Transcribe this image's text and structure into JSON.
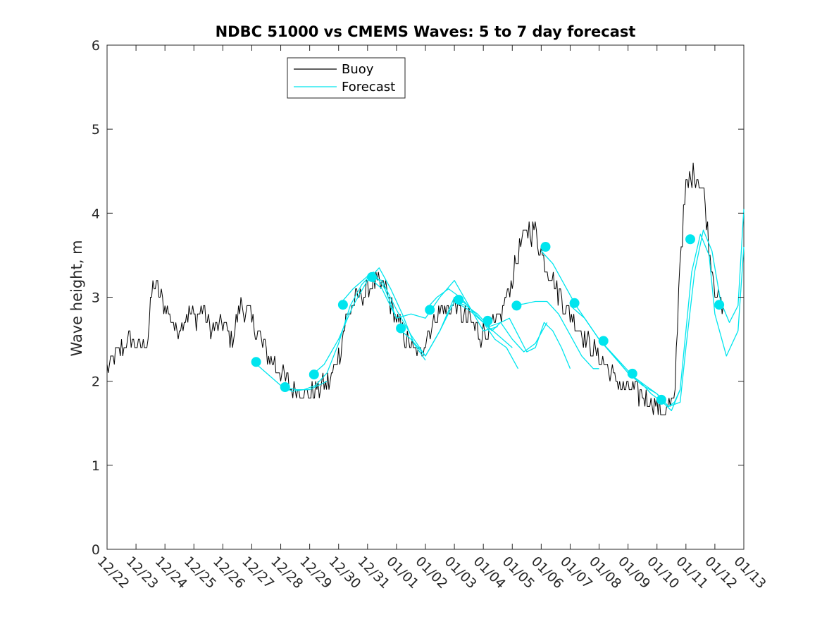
{
  "chart_data": {
    "type": "line",
    "title": "NDBC 51000 vs CMEMS Waves: 5 to 7 day forecast",
    "xlabel": "",
    "ylabel": "Wave height, m",
    "ylim": [
      0,
      6
    ],
    "xlim": [
      0,
      22
    ],
    "yticks": [
      0,
      1,
      2,
      3,
      4,
      5,
      6
    ],
    "xticks": [
      {
        "x": 0,
        "label": "12/22"
      },
      {
        "x": 1,
        "label": "12/23"
      },
      {
        "x": 2,
        "label": "12/24"
      },
      {
        "x": 3,
        "label": "12/25"
      },
      {
        "x": 4,
        "label": "12/26"
      },
      {
        "x": 5,
        "label": "12/27"
      },
      {
        "x": 6,
        "label": "12/28"
      },
      {
        "x": 7,
        "label": "12/29"
      },
      {
        "x": 8,
        "label": "12/30"
      },
      {
        "x": 9,
        "label": "12/31"
      },
      {
        "x": 10,
        "label": "01/01"
      },
      {
        "x": 11,
        "label": "01/02"
      },
      {
        "x": 12,
        "label": "01/03"
      },
      {
        "x": 13,
        "label": "01/04"
      },
      {
        "x": 14,
        "label": "01/05"
      },
      {
        "x": 15,
        "label": "01/06"
      },
      {
        "x": 16,
        "label": "01/07"
      },
      {
        "x": 17,
        "label": "01/08"
      },
      {
        "x": 18,
        "label": "01/09"
      },
      {
        "x": 19,
        "label": "01/10"
      },
      {
        "x": 20,
        "label": "01/11"
      },
      {
        "x": 21,
        "label": "01/12"
      },
      {
        "x": 22,
        "label": "01/13"
      }
    ],
    "legend": {
      "position": "top-center",
      "entries": [
        {
          "name": "Buoy",
          "color": "#000000"
        },
        {
          "name": "Forecast",
          "color": "#00e5ee"
        }
      ]
    },
    "series": [
      {
        "name": "Buoy",
        "color": "#000000",
        "noise": 0.13,
        "x": [
          0,
          0.3,
          0.8,
          1.2,
          1.4,
          1.6,
          2.0,
          2.4,
          2.8,
          3.1,
          3.3,
          3.6,
          4.0,
          4.3,
          4.6,
          4.9,
          5.3,
          5.6,
          6.0,
          6.3,
          6.7,
          7.0,
          7.3,
          7.7,
          8.0,
          8.3,
          8.7,
          9.0,
          9.3,
          9.6,
          9.9,
          10.2,
          10.5,
          10.8,
          11.0,
          11.3,
          11.6,
          12.0,
          12.3,
          12.6,
          12.9,
          13.2,
          13.5,
          13.8,
          14.2,
          14.5,
          14.8,
          15.0,
          15.3,
          15.6,
          16.0,
          16.3,
          16.7,
          17.0,
          17.3,
          17.6,
          18.0,
          18.3,
          18.6,
          19.0,
          19.3,
          19.6,
          19.8,
          20.0,
          20.3,
          20.6,
          20.8,
          21.0,
          21.3
        ],
        "y": [
          2.15,
          2.3,
          2.5,
          2.4,
          2.5,
          3.2,
          2.9,
          2.6,
          2.8,
          2.75,
          2.9,
          2.6,
          2.7,
          2.5,
          2.9,
          2.8,
          2.5,
          2.3,
          2.1,
          1.95,
          1.9,
          1.85,
          1.9,
          2.0,
          2.3,
          2.8,
          3.0,
          3.1,
          3.2,
          3.1,
          2.8,
          2.6,
          2.4,
          2.3,
          2.5,
          2.75,
          2.85,
          2.9,
          2.8,
          2.7,
          2.55,
          2.6,
          2.7,
          3.0,
          3.5,
          3.8,
          3.8,
          3.55,
          3.3,
          3.05,
          2.8,
          2.65,
          2.4,
          2.3,
          2.15,
          2.0,
          1.9,
          1.85,
          1.8,
          1.7,
          1.65,
          1.75,
          3.5,
          4.3,
          4.5,
          4.3,
          3.6,
          3.1,
          2.8
        ]
      },
      {
        "name": "Forecast",
        "color": "#00e5ee",
        "segments": [
          {
            "x": [
              5.0,
              5.5,
              6.0,
              6.5,
              7.0,
              7.3,
              7.6
            ],
            "y": [
              2.25,
              2.1,
              1.95,
              1.9,
              1.9,
              1.95,
              2.0
            ]
          },
          {
            "x": [
              6.0,
              6.4,
              6.8,
              7.2,
              7.6,
              8.0,
              8.4,
              8.8,
              9.2,
              9.6,
              10.0
            ],
            "y": [
              1.95,
              1.88,
              1.9,
              1.95,
              2.1,
              2.45,
              2.9,
              3.15,
              3.3,
              3.1,
              2.75
            ]
          },
          {
            "x": [
              7.0,
              7.5,
              8.0,
              8.5,
              9.0,
              9.4,
              9.8,
              10.2,
              10.6,
              11.0
            ],
            "y": [
              2.05,
              2.2,
              2.5,
              2.9,
              3.2,
              3.35,
              3.1,
              2.8,
              2.45,
              2.25
            ]
          },
          {
            "x": [
              8.0,
              8.5,
              9.0,
              9.5,
              10.0,
              10.5,
              11.0,
              11.5,
              12.0,
              12.5
            ],
            "y": [
              2.9,
              3.1,
              3.25,
              3.2,
              2.85,
              2.55,
              2.3,
              2.6,
              3.0,
              2.9
            ]
          },
          {
            "x": [
              9.0,
              9.5,
              10.0,
              10.5,
              11.0,
              11.5,
              12.0,
              12.5,
              13.0,
              13.5
            ],
            "y": [
              3.25,
              3.1,
              2.75,
              2.8,
              2.75,
              3.0,
              3.2,
              2.9,
              2.6,
              2.65
            ]
          },
          {
            "x": [
              10.0,
              10.5,
              11.0,
              11.5,
              12.0,
              12.5,
              13.0,
              13.5,
              14.0
            ],
            "y": [
              2.65,
              2.5,
              2.3,
              2.6,
              2.95,
              2.85,
              2.7,
              2.55,
              2.4
            ]
          },
          {
            "x": [
              11.0,
              11.4,
              11.8,
              12.2,
              12.6,
              13.0,
              13.4,
              13.8,
              14.2
            ],
            "y": [
              2.85,
              3.0,
              3.1,
              3.0,
              2.85,
              2.7,
              2.5,
              2.4,
              2.15
            ]
          },
          {
            "x": [
              12.0,
              12.4,
              12.8,
              13.2,
              13.6,
              14.0,
              14.4,
              14.8,
              15.2
            ],
            "y": [
              2.95,
              2.9,
              2.8,
              2.65,
              2.7,
              2.5,
              2.35,
              2.45,
              2.7
            ]
          },
          {
            "x": [
              13.0,
              13.3,
              13.6,
              13.9,
              14.2,
              14.5,
              14.8,
              15.1,
              15.4,
              15.7,
              16.0
            ],
            "y": [
              2.7,
              2.6,
              2.7,
              2.75,
              2.55,
              2.35,
              2.4,
              2.7,
              2.6,
              2.4,
              2.15
            ]
          },
          {
            "x": [
              14.0,
              14.4,
              14.8,
              15.2,
              15.6,
              16.0,
              16.4,
              16.8,
              17.0
            ],
            "y": [
              2.9,
              2.92,
              2.95,
              2.95,
              2.8,
              2.55,
              2.3,
              2.15,
              2.15
            ]
          },
          {
            "x": [
              15.0,
              15.4,
              15.8,
              16.2,
              16.6,
              17.0,
              17.4,
              17.8,
              18.2,
              18.6,
              19.0,
              19.4,
              19.6,
              19.8
            ],
            "y": [
              3.55,
              3.4,
              3.15,
              2.9,
              2.7,
              2.5,
              2.35,
              2.2,
              2.05,
              1.95,
              1.85,
              1.7,
              1.75,
              1.9
            ]
          },
          {
            "x": [
              16.0,
              16.5,
              17.0,
              17.5,
              18.0,
              18.4,
              18.8,
              19.2,
              19.5,
              19.8,
              20.0,
              20.2,
              20.5,
              20.8,
              21.0,
              21.4,
              21.8,
              22.0
            ],
            "y": [
              2.9,
              2.75,
              2.5,
              2.3,
              2.1,
              2.0,
              1.85,
              1.75,
              1.65,
              1.9,
              2.6,
              3.3,
              3.75,
              3.5,
              2.8,
              2.3,
              2.6,
              3.6
            ]
          },
          {
            "x": [
              17.0,
              17.5,
              18.0,
              18.5,
              19.0,
              19.4,
              19.8,
              20.0,
              20.3,
              20.6,
              20.9,
              21.2,
              21.5,
              21.8,
              22.0
            ],
            "y": [
              2.5,
              2.3,
              2.1,
              1.95,
              1.85,
              1.7,
              1.75,
              2.4,
              3.3,
              3.8,
              3.55,
              2.95,
              2.7,
              2.9,
              4.05
            ]
          }
        ]
      },
      {
        "name": "Forecast markers",
        "color": "#00e5ee",
        "x": [
          5.15,
          6.15,
          7.15,
          8.15,
          9.15,
          10.15,
          11.15,
          12.15,
          13.15,
          14.15,
          15.15,
          16.15,
          17.15,
          18.15,
          19.15,
          20.15,
          21.15
        ],
        "y": [
          2.23,
          1.93,
          2.08,
          2.91,
          3.24,
          2.63,
          2.85,
          2.97,
          2.72,
          2.9,
          3.6,
          2.93,
          2.48,
          2.09,
          1.78,
          3.69,
          2.91
        ]
      }
    ]
  }
}
